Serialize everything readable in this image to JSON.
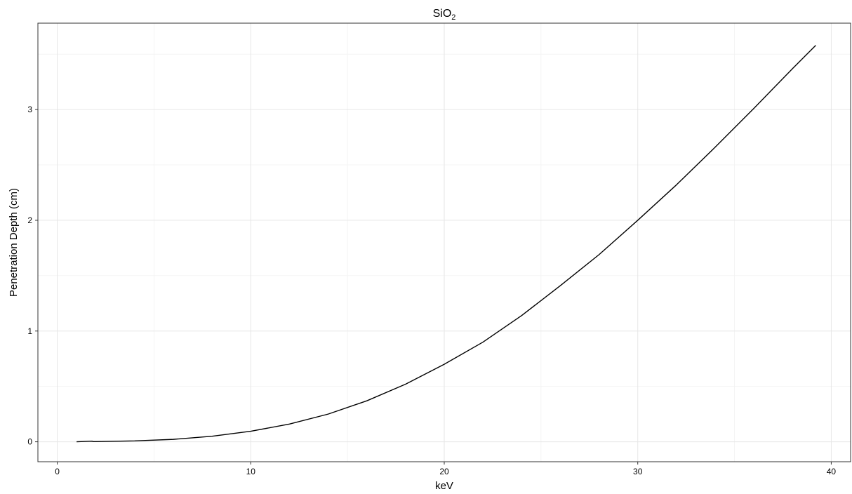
{
  "chart_data": {
    "type": "line",
    "title": "SiO",
    "title_subscript": "2",
    "xlabel": "keV",
    "ylabel": "Penetration Depth (cm)",
    "xlim": [
      -1,
      41
    ],
    "ylim": [
      -0.18,
      3.78
    ],
    "x_ticks": [
      0,
      10,
      20,
      30,
      40
    ],
    "x_tick_labels": [
      "0",
      "10",
      "20",
      "30",
      "40"
    ],
    "y_ticks": [
      0,
      1,
      2,
      3
    ],
    "y_tick_labels": [
      "0",
      "1",
      "2",
      "3"
    ],
    "x_minor_ticks": [
      5,
      15,
      25,
      35
    ],
    "y_minor_ticks": [
      0.5,
      1.5,
      2.5,
      3.5
    ],
    "grid": true,
    "colors": {
      "line": "#000000",
      "major_grid": "#e6e6e6",
      "minor_grid": "#f2f2f2",
      "panel_border": "#333333"
    },
    "series": [
      {
        "x": [
          1.0,
          1.8,
          1.85,
          2,
          4,
          6,
          8,
          10,
          12,
          14,
          16,
          18,
          20,
          22,
          24,
          26,
          28,
          30,
          32,
          34,
          36,
          38,
          39.2
        ],
        "y": [
          0.0,
          0.006,
          0.002,
          0.002,
          0.008,
          0.022,
          0.05,
          0.095,
          0.16,
          0.25,
          0.37,
          0.52,
          0.7,
          0.9,
          1.14,
          1.41,
          1.69,
          2.0,
          2.32,
          2.66,
          3.01,
          3.37,
          3.58
        ]
      }
    ]
  }
}
